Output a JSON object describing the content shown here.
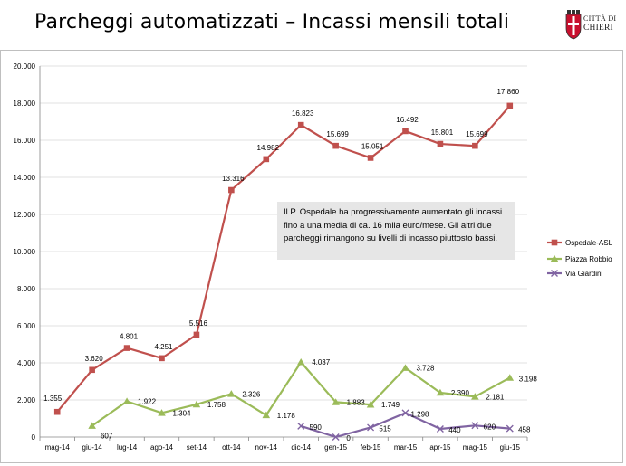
{
  "slide": {
    "title": "Parcheggi automatizzati – Incassi mensili totali"
  },
  "logo": {
    "line1": "CITTÀ DI",
    "line2": "CHIERI"
  },
  "annotation": {
    "text": "Il P. Ospedale ha  progressivamente aumentato gli incassi fino a una media di ca. 16 mila euro/mese. Gli altri due parcheggi rimangono su livelli di incasso piuttosto bassi."
  },
  "colors": {
    "ospedale": "#c0504d",
    "robbio": "#9bbb59",
    "giardini": "#8064a2",
    "grid": "#d9d9d9"
  },
  "chart_data": {
    "type": "line",
    "title": "",
    "xlabel": "",
    "ylabel": "",
    "ylim": [
      0,
      20000
    ],
    "yticks": [
      0,
      2000,
      4000,
      6000,
      8000,
      10000,
      12000,
      14000,
      16000,
      18000,
      20000
    ],
    "ytick_labels": [
      "0",
      "2.000",
      "4.000",
      "6.000",
      "8.000",
      "10.000",
      "12.000",
      "14.000",
      "16.000",
      "18.000",
      "20.000"
    ],
    "grid": true,
    "legend_position": "right",
    "categories": [
      "mag-14",
      "giu-14",
      "lug-14",
      "ago-14",
      "set-14",
      "ott-14",
      "nov-14",
      "dic-14",
      "gen-15",
      "feb-15",
      "mar-15",
      "apr-15",
      "mag-15",
      "giu-15"
    ],
    "series": [
      {
        "name": "Ospedale-ASL",
        "marker": "square",
        "color": "#c0504d",
        "values": [
          1355,
          3620,
          4801,
          4251,
          5516,
          13316,
          14982,
          16823,
          15699,
          15051,
          16492,
          15801,
          15699,
          17860
        ],
        "labels": [
          "1.355",
          "3.620",
          "4.801",
          "4.251",
          "5.516",
          "13.316",
          "14.982",
          "16.823",
          "15.699",
          "15.051",
          "16.492",
          "15.801",
          "15.699",
          "17.860"
        ]
      },
      {
        "name": "Piazza Robbio",
        "marker": "triangle",
        "color": "#9bbb59",
        "values": [
          null,
          607,
          1922,
          1304,
          1758,
          2326,
          1178,
          4037,
          1883,
          1749,
          3728,
          2390,
          2181,
          3198
        ],
        "labels": [
          null,
          "607",
          "1.922",
          "1.304",
          "1.758",
          "2.326",
          "1.178",
          "4.037",
          "1.883",
          "1.749",
          "3.728",
          "2.390",
          "2.181",
          "3.198"
        ]
      },
      {
        "name": "Via Giardini",
        "marker": "x",
        "color": "#8064a2",
        "values": [
          null,
          null,
          null,
          null,
          null,
          null,
          null,
          590,
          0,
          515,
          1298,
          440,
          620,
          458
        ],
        "labels": [
          null,
          null,
          null,
          null,
          null,
          null,
          null,
          "590",
          "0",
          "515",
          "1.298",
          "440",
          "620",
          "458"
        ]
      }
    ]
  }
}
